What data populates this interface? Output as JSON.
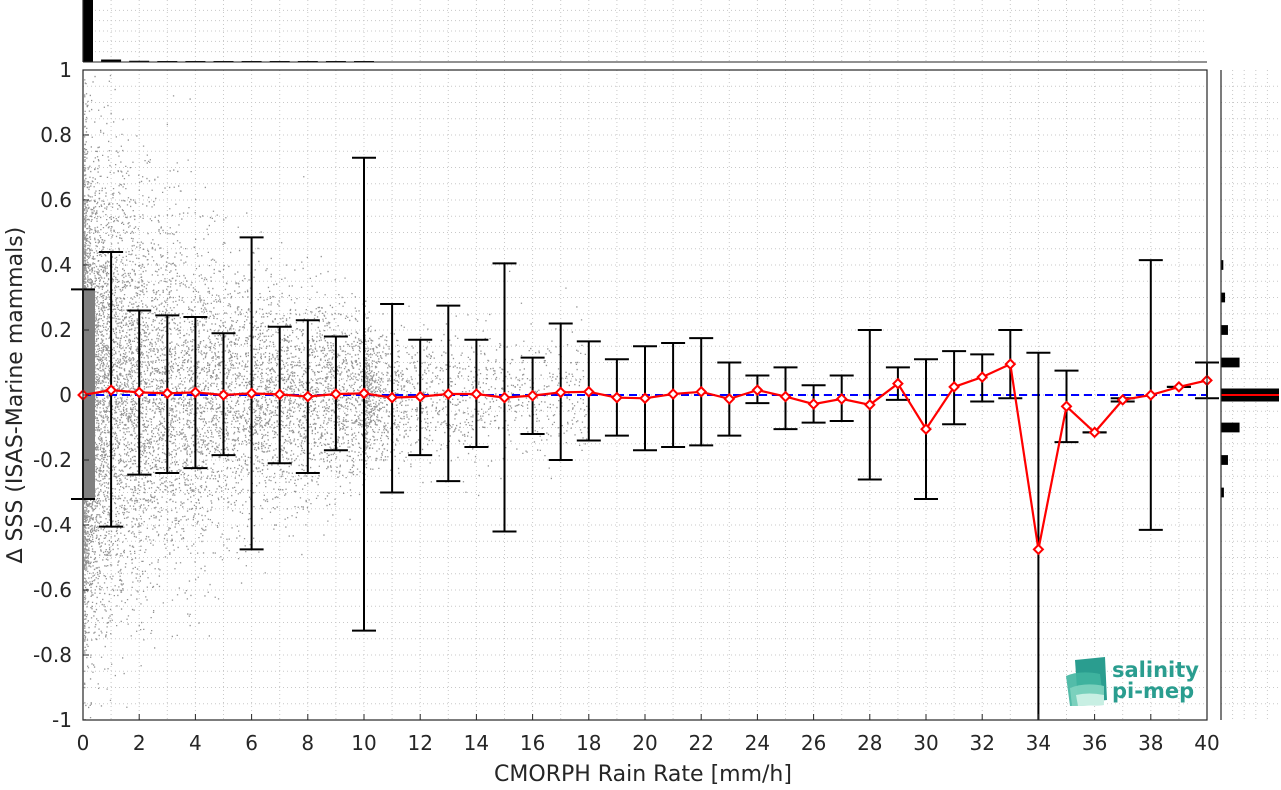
{
  "chart_data": {
    "type": "scatter",
    "xlabel": "CMORPH Rain Rate [mm/h]",
    "ylabel": "∆ SSS (ISAS-Marine mammals)",
    "xlim": [
      0,
      40
    ],
    "ylim": [
      -1,
      1
    ],
    "x_ticks": [
      "0",
      "2",
      "4",
      "6",
      "8",
      "10",
      "12",
      "14",
      "16",
      "18",
      "20",
      "22",
      "24",
      "26",
      "28",
      "30",
      "32",
      "34",
      "36",
      "38",
      "40"
    ],
    "y_ticks": [
      "1",
      "0.8",
      "0.6",
      "0.4",
      "0.2",
      "0",
      "-0.2",
      "-0.4",
      "-0.6",
      "-0.8",
      "-1"
    ],
    "grid": true,
    "colors": {
      "scatter": "#808080",
      "mean_line": "#ff0000",
      "error_bars": "#000000",
      "zero_line": "#0000ff",
      "histogram": "#000000"
    },
    "series": [
      {
        "style": "red line with diamond markers and black error bars (±std)",
        "x": [
          0,
          1,
          2,
          3,
          4,
          5,
          6,
          7,
          8,
          9,
          10,
          11,
          12,
          13,
          14,
          15,
          16,
          17,
          18,
          19,
          20,
          21,
          22,
          23,
          24,
          25,
          26,
          27,
          28,
          29,
          30,
          31,
          32,
          33,
          34,
          35,
          36,
          37,
          38,
          39,
          40
        ],
        "mean": [
          0.0,
          0.015,
          0.008,
          0.005,
          0.008,
          0.0,
          0.005,
          0.002,
          -0.005,
          0.003,
          0.005,
          -0.008,
          -0.005,
          0.003,
          0.003,
          -0.008,
          -0.002,
          0.008,
          0.01,
          -0.008,
          -0.01,
          0.003,
          0.01,
          -0.012,
          0.015,
          -0.005,
          -0.028,
          -0.012,
          -0.03,
          0.035,
          -0.105,
          0.025,
          0.055,
          0.095,
          -0.475,
          -0.035,
          -0.115,
          -0.015,
          0.0,
          0.025,
          0.045
        ],
        "upper": [
          0.325,
          0.44,
          0.26,
          0.245,
          0.24,
          0.19,
          0.485,
          0.21,
          0.23,
          0.18,
          0.73,
          0.28,
          0.17,
          0.275,
          0.17,
          0.405,
          0.115,
          0.22,
          0.165,
          0.11,
          0.15,
          0.16,
          0.175,
          0.1,
          0.06,
          0.085,
          0.03,
          0.06,
          0.2,
          0.085,
          0.11,
          0.135,
          0.125,
          0.2,
          0.13,
          0.075,
          -0.115,
          -0.01,
          0.415,
          0.025,
          0.1
        ],
        "lower": [
          -0.32,
          -0.405,
          -0.245,
          -0.24,
          -0.225,
          -0.185,
          -0.475,
          -0.21,
          -0.24,
          -0.17,
          -0.725,
          -0.3,
          -0.185,
          -0.265,
          -0.16,
          -0.42,
          -0.12,
          -0.2,
          -0.14,
          -0.125,
          -0.17,
          -0.16,
          -0.155,
          -0.125,
          -0.025,
          -0.105,
          -0.085,
          -0.08,
          -0.26,
          -0.015,
          -0.32,
          -0.09,
          -0.02,
          -0.01,
          -1.0,
          -0.145,
          -0.115,
          -0.02,
          -0.415,
          0.025,
          -0.01
        ]
      }
    ],
    "zero_line": 0,
    "top_histogram": {
      "description": "distribution of rain rate",
      "bin_centers": [
        0.2,
        1,
        2,
        3,
        4,
        5,
        6,
        7,
        8,
        9,
        10
      ],
      "relative_heights": [
        1.0,
        0.04,
        0.02,
        0.01,
        0.006,
        0.004,
        0.003,
        0.002,
        0.002,
        0.001,
        0.001
      ]
    },
    "right_histogram": {
      "description": "distribution of ΔSSS",
      "bin_centers": [
        0.4,
        0.3,
        0.2,
        0.1,
        0.0,
        -0.1,
        -0.2,
        -0.3
      ],
      "relative_widths": [
        0.04,
        0.07,
        0.12,
        0.32,
        1.0,
        0.32,
        0.12,
        0.05
      ]
    }
  },
  "logo": {
    "line1": "salinity",
    "line2": "pi-mep"
  }
}
